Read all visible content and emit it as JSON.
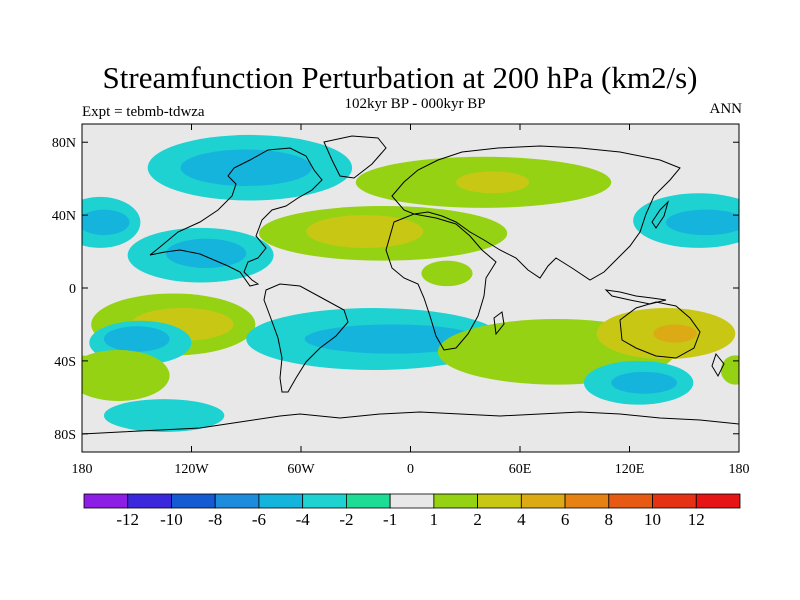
{
  "chart_data": {
    "type": "heatmap",
    "title": "Streamfunction Perturbation at 200 hPa (km2/s)",
    "subtitle": "102kyr BP - 000kyr BP",
    "left_label": "Expt = tebmb-tdwza",
    "right_label": "ANN",
    "xaxis": {
      "range": [
        -180,
        180
      ],
      "ticks": [
        {
          "value": -180,
          "label": "180"
        },
        {
          "value": -120,
          "label": "120W"
        },
        {
          "value": -60,
          "label": "60W"
        },
        {
          "value": 0,
          "label": "0"
        },
        {
          "value": 60,
          "label": "60E"
        },
        {
          "value": 120,
          "label": "120E"
        },
        {
          "value": 180,
          "label": "180"
        }
      ]
    },
    "yaxis": {
      "range": [
        -90,
        90
      ],
      "ticks": [
        {
          "value": 80,
          "label": "80N"
        },
        {
          "value": 40,
          "label": "40N"
        },
        {
          "value": 0,
          "label": "0"
        },
        {
          "value": -40,
          "label": "40S"
        },
        {
          "value": -80,
          "label": "80S"
        }
      ]
    },
    "colorbar": {
      "labels": [
        "-12",
        "-10",
        "-8",
        "-6",
        "-4",
        "-2",
        "-1",
        "1",
        "2",
        "4",
        "6",
        "8",
        "10",
        "12"
      ],
      "colors": [
        "#8c1ee6",
        "#3c28dc",
        "#145ad2",
        "#1e8cdc",
        "#14b4dc",
        "#1ed2d2",
        "#1edc96",
        "#e8e8e8",
        "#96d214",
        "#c8c814",
        "#dcaa14",
        "#e68214",
        "#e65a14",
        "#e63214",
        "#e61414"
      ]
    },
    "field_regions": [
      {
        "lon": -170,
        "lat": 36,
        "rx": 22,
        "ry": 14,
        "level": "-2"
      },
      {
        "lon": -168,
        "lat": 36,
        "rx": 14,
        "ry": 7,
        "level": "-4"
      },
      {
        "lon": -115,
        "lat": 18,
        "rx": 40,
        "ry": 15,
        "level": "-2"
      },
      {
        "lon": -112,
        "lat": 19,
        "rx": 22,
        "ry": 8,
        "level": "-4"
      },
      {
        "lon": -88,
        "lat": 66,
        "rx": 56,
        "ry": 18,
        "level": "-2"
      },
      {
        "lon": -90,
        "lat": 66,
        "rx": 36,
        "ry": 10,
        "level": "-4"
      },
      {
        "lon": -15,
        "lat": 30,
        "rx": 68,
        "ry": 15,
        "level": "1"
      },
      {
        "lon": -25,
        "lat": 31,
        "rx": 32,
        "ry": 9,
        "level": "2"
      },
      {
        "lon": 40,
        "lat": 58,
        "rx": 70,
        "ry": 14,
        "level": "1"
      },
      {
        "lon": 45,
        "lat": 58,
        "rx": 20,
        "ry": 6,
        "level": "2"
      },
      {
        "lon": 20,
        "lat": 8,
        "rx": 14,
        "ry": 7,
        "level": "1"
      },
      {
        "lon": 158,
        "lat": 37,
        "rx": 36,
        "ry": 15,
        "level": "-2"
      },
      {
        "lon": 162,
        "lat": 36,
        "rx": 22,
        "ry": 7,
        "level": "-4"
      },
      {
        "lon": -130,
        "lat": -20,
        "rx": 45,
        "ry": 17,
        "level": "1"
      },
      {
        "lon": -125,
        "lat": -20,
        "rx": 28,
        "ry": 9,
        "level": "2"
      },
      {
        "lon": -148,
        "lat": -30,
        "rx": 28,
        "ry": 12,
        "level": "-2"
      },
      {
        "lon": -150,
        "lat": -28,
        "rx": 18,
        "ry": 7,
        "level": "-4"
      },
      {
        "lon": -160,
        "lat": -48,
        "rx": 28,
        "ry": 14,
        "level": "1"
      },
      {
        "lon": -135,
        "lat": -70,
        "rx": 33,
        "ry": 9,
        "level": "-2"
      },
      {
        "lon": -20,
        "lat": -28,
        "rx": 70,
        "ry": 17,
        "level": "-2"
      },
      {
        "lon": -10,
        "lat": -28,
        "rx": 48,
        "ry": 8,
        "level": "-4"
      },
      {
        "lon": 80,
        "lat": -35,
        "rx": 65,
        "ry": 18,
        "level": "1"
      },
      {
        "lon": 140,
        "lat": -25,
        "rx": 38,
        "ry": 14,
        "level": "2"
      },
      {
        "lon": 145,
        "lat": -25,
        "rx": 12,
        "ry": 5,
        "level": "4"
      },
      {
        "lon": 125,
        "lat": -52,
        "rx": 30,
        "ry": 12,
        "level": "-2"
      },
      {
        "lon": 128,
        "lat": -52,
        "rx": 18,
        "ry": 6,
        "level": "-4"
      },
      {
        "lon": 178,
        "lat": -45,
        "rx": 8,
        "ry": 8,
        "level": "1"
      },
      {
        "lon": -180,
        "lat": -45,
        "rx": 8,
        "ry": 8,
        "level": "1"
      }
    ]
  }
}
